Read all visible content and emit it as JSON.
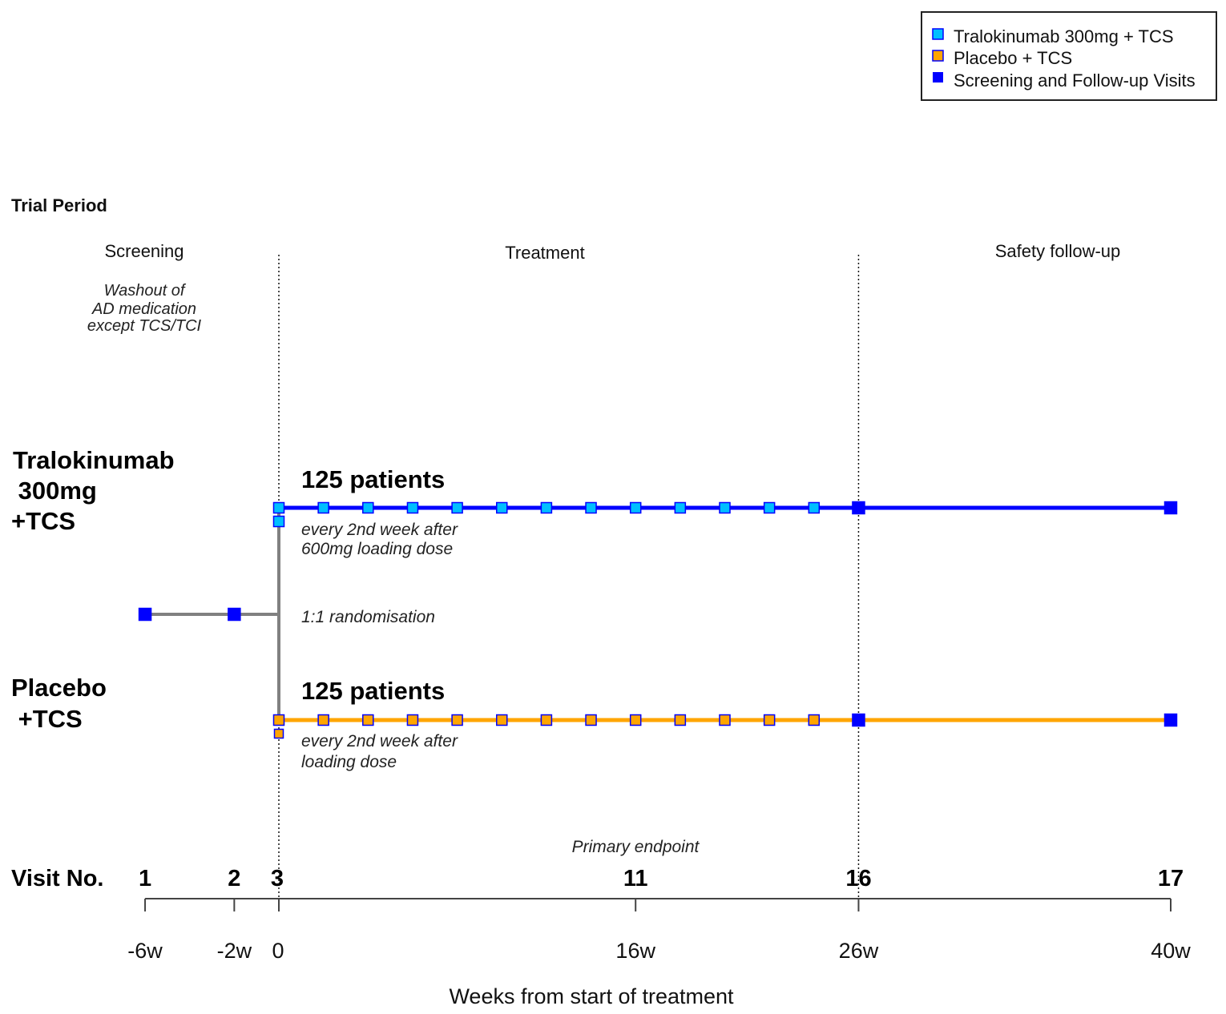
{
  "legend": {
    "items": [
      {
        "label": "Tralokinumab 300mg + TCS",
        "color": "#00BFFF"
      },
      {
        "label": "Placebo + TCS",
        "color": "#FFA500"
      },
      {
        "label": "Screening and Follow-up Visits",
        "color": "#0000FF"
      }
    ]
  },
  "trial_period_label": "Trial Period",
  "periods": {
    "screening": "Screening",
    "treatment": "Treatment",
    "safety": "Safety follow-up"
  },
  "washout_note": [
    "Washout of",
    "AD medication",
    "except TCS/TCI"
  ],
  "arms": {
    "active": {
      "name_lines": [
        "Tralokinumab",
        " 300mg",
        "+TCS"
      ],
      "patients": "125 patients",
      "note_lines": [
        "every 2nd week after",
        "600mg loading dose"
      ],
      "line_color": "#0000FF",
      "marker_color": "#00BFFF"
    },
    "placebo": {
      "name_lines": [
        "Placebo",
        " +TCS"
      ],
      "patients": "125 patients",
      "note_lines": [
        "every 2nd week after",
        "loading dose"
      ],
      "line_color": "#FFA500",
      "marker_color": "#FFA500"
    }
  },
  "randomisation_label": "1:1 randomisation",
  "primary_endpoint_label": "Primary endpoint",
  "visit_label": "Visit No.",
  "axis_title": "Weeks from start of treatment",
  "chart_data": {
    "type": "timeline",
    "x_unit": "weeks",
    "xlim": [
      -6,
      40
    ],
    "visits": [
      {
        "no": "1",
        "week": -6,
        "tick": "-6w"
      },
      {
        "no": "2",
        "week": -2,
        "tick": "-2w"
      },
      {
        "no": "3",
        "week": 0,
        "tick": "0"
      },
      {
        "no": "11",
        "week": 16,
        "tick": "16w"
      },
      {
        "no": "16",
        "week": 26,
        "tick": "26w"
      },
      {
        "no": "17",
        "week": 40,
        "tick": "40w"
      }
    ],
    "dose_weeks": [
      0,
      2,
      4,
      6,
      8,
      10,
      12,
      14,
      16,
      18,
      20,
      22,
      24
    ],
    "loading_dose_week": 0,
    "screening_visit_weeks": [
      -6,
      -2
    ],
    "followup_visit_weeks": [
      26,
      40
    ],
    "period_boundaries_weeks": [
      0,
      26
    ]
  }
}
